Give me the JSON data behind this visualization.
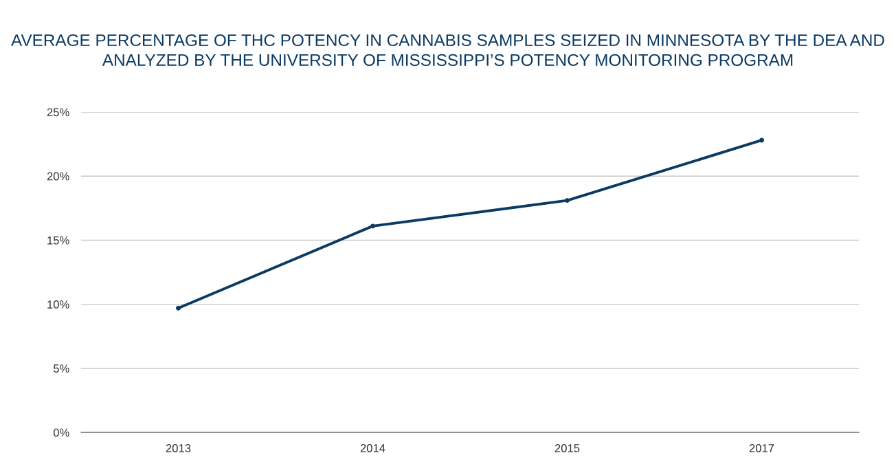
{
  "chart_data": {
    "type": "line",
    "title": "AVERAGE PERCENTAGE OF THC POTENCY IN CANNABIS SAMPLES SEIZED IN MINNESOTA BY THE DEA AND ANALYZED BY THE UNIVERSITY OF MISSISSIPPI’S POTENCY MONITORING PROGRAM",
    "categories": [
      "2013",
      "2014",
      "2015",
      "2017"
    ],
    "series": [
      {
        "color": "#0b3a63",
        "values": [
          9.7,
          16.1,
          18.1,
          22.8
        ]
      }
    ],
    "ylim": [
      0,
      25
    ],
    "yticks": [
      {
        "value": 0,
        "label": "0%"
      },
      {
        "value": 5,
        "label": "5%"
      },
      {
        "value": 10,
        "label": "10%"
      },
      {
        "value": 15,
        "label": "15%"
      },
      {
        "value": 20,
        "label": "20%"
      },
      {
        "value": 25,
        "label": "25%"
      }
    ],
    "grid": "y",
    "marker": "circle",
    "line_style": "solid"
  }
}
